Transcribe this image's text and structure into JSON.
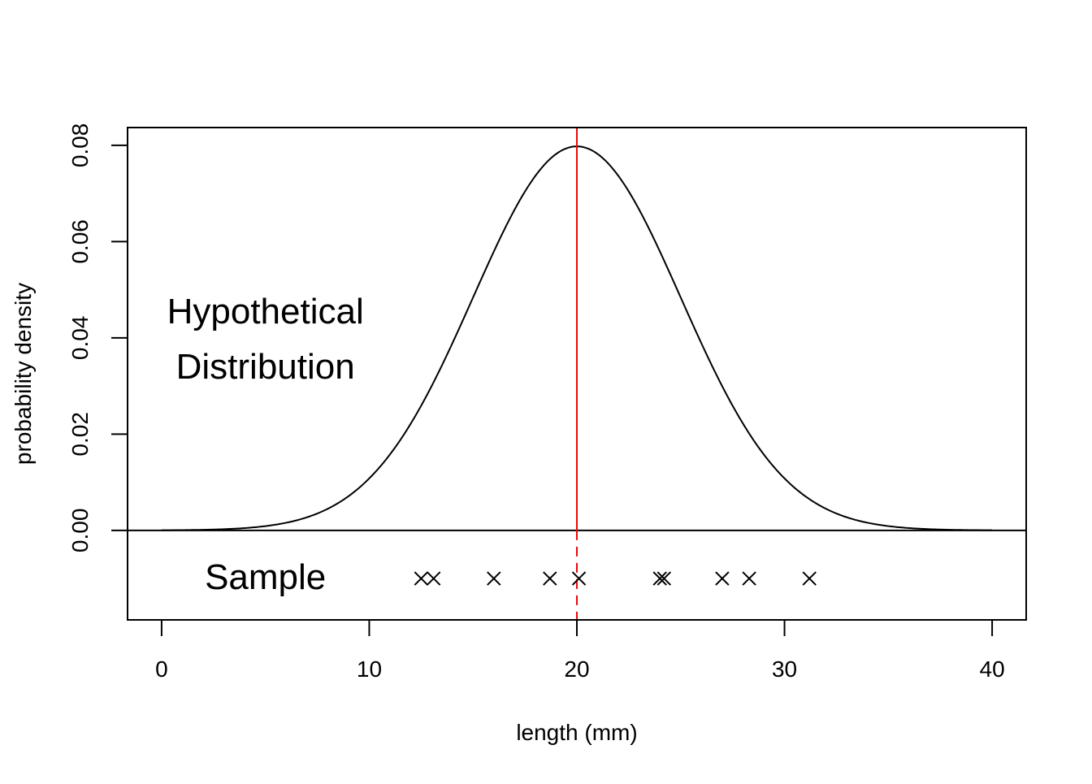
{
  "chart_data": {
    "type": "line",
    "title": "",
    "xlabel": "length (mm)",
    "ylabel": "probability density",
    "xlim": [
      -1.64,
      41.64
    ],
    "ylim": [
      -0.0186,
      0.0837
    ],
    "x_ticks": [
      "0",
      "10",
      "20",
      "30",
      "40"
    ],
    "y_ticks": [
      "0.00",
      "0.02",
      "0.04",
      "0.06",
      "0.08"
    ],
    "x_tick_values": [
      0,
      10,
      20,
      30,
      40
    ],
    "y_tick_values": [
      0,
      0.02,
      0.04,
      0.06,
      0.08
    ],
    "series": [
      {
        "type": "normal_density_curve",
        "mean": 20,
        "sd": 5,
        "x_range": [
          0,
          40
        ],
        "color": "#000000"
      }
    ],
    "vertical_line": {
      "x": 20,
      "color": "#ff0000",
      "style": "dashed"
    },
    "zero_line": {
      "y": 0,
      "color": "#000000"
    },
    "sample": {
      "y": -0.01,
      "marker": "x",
      "values": [
        12.5,
        13.1,
        16.0,
        18.7,
        20.1,
        24.0,
        24.2,
        27.0,
        28.3,
        31.2
      ]
    },
    "annotations": [
      {
        "lines": [
          "Hypothetical",
          "Distribution"
        ],
        "x": 5,
        "y": [
          0.0455,
          0.034
        ]
      },
      {
        "lines": [
          "Sample"
        ],
        "x": 5,
        "y": [
          -0.0097
        ]
      }
    ],
    "grid": false,
    "legend": "none"
  }
}
